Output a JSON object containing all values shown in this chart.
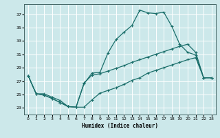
{
  "xlabel": "Humidex (Indice chaleur)",
  "bg_color": "#cce8ea",
  "grid_color": "#ffffff",
  "line_color": "#1a6e6a",
  "xlim": [
    -0.5,
    23.5
  ],
  "ylim": [
    22.0,
    38.5
  ],
  "xticks": [
    0,
    1,
    2,
    3,
    4,
    5,
    6,
    7,
    8,
    9,
    10,
    11,
    12,
    13,
    14,
    15,
    16,
    17,
    18,
    19,
    20,
    21,
    22,
    23
  ],
  "yticks": [
    23,
    25,
    27,
    29,
    31,
    33,
    35,
    37
  ],
  "curve1_x": [
    0,
    1,
    2,
    3,
    4,
    5,
    6,
    7,
    8,
    9,
    10,
    11,
    12,
    13,
    14,
    15,
    16,
    17,
    18,
    19,
    20,
    21,
    22,
    23
  ],
  "curve1_y": [
    27.8,
    25.1,
    25.1,
    24.6,
    24.1,
    23.2,
    23.1,
    26.6,
    28.2,
    28.3,
    31.2,
    33.2,
    34.3,
    35.3,
    37.6,
    37.2,
    37.1,
    37.3,
    35.2,
    32.5,
    31.3,
    30.9,
    27.5,
    27.5
  ],
  "curve2_x": [
    0,
    1,
    2,
    3,
    4,
    5,
    6,
    7,
    8,
    9,
    10,
    11,
    12,
    13,
    14,
    15,
    16,
    17,
    18,
    19,
    20,
    21,
    22,
    23
  ],
  "curve2_y": [
    27.8,
    25.1,
    24.9,
    24.4,
    23.8,
    23.2,
    23.1,
    23.1,
    24.2,
    25.2,
    25.6,
    26.0,
    26.5,
    27.1,
    27.5,
    28.2,
    28.6,
    29.0,
    29.4,
    29.8,
    30.2,
    30.5,
    27.5,
    27.5
  ],
  "curve3_x": [
    0,
    1,
    2,
    3,
    4,
    5,
    6,
    7,
    8,
    9,
    10,
    11,
    12,
    13,
    14,
    15,
    16,
    17,
    18,
    19,
    20,
    21,
    22,
    23
  ],
  "curve3_y": [
    27.8,
    25.1,
    24.9,
    24.4,
    23.8,
    23.2,
    23.1,
    26.7,
    27.9,
    28.1,
    28.5,
    28.9,
    29.3,
    29.8,
    30.2,
    30.6,
    31.0,
    31.4,
    31.8,
    32.2,
    32.5,
    31.3,
    27.5,
    27.5
  ]
}
